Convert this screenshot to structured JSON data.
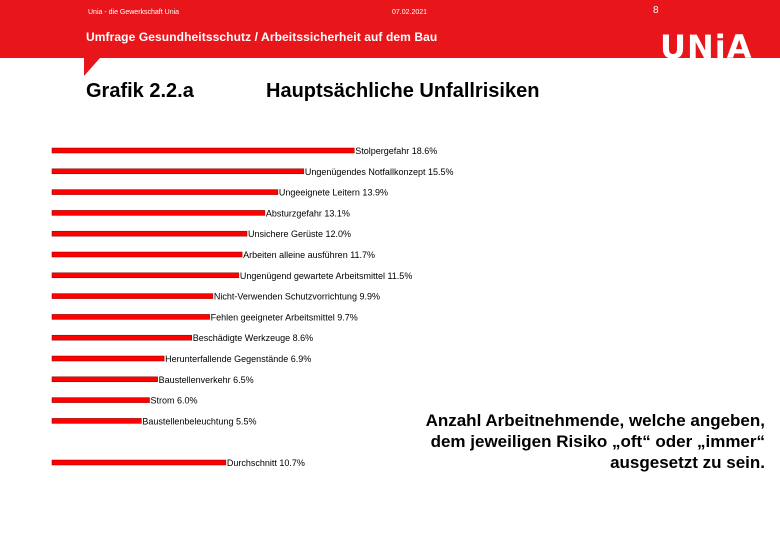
{
  "header": {
    "org": "Unia - die Gewerkschaft Unia",
    "date": "07.02.2021",
    "page": "8",
    "title": "Umfrage Gesundheitsschutz / Arbeitssicherheit auf dem Bau",
    "logo": "UNiA"
  },
  "figure_label": "Grafik 2.2.a",
  "note": "Anzahl Arbeitnehmende, welche angeben, dem jeweiligen Risiko „oft“ oder „immer“ ausgesetzt zu sein.",
  "colors": {
    "brand_red": "#e8161b",
    "bar": "#ff0000"
  },
  "chart_data": {
    "type": "bar",
    "orientation": "horizontal",
    "title": "Hauptsächliche Unfallrisiken",
    "xlabel": "",
    "ylabel": "",
    "grid": false,
    "unit": "%",
    "categories": [
      "Stolpergefahr",
      "Ungenügendes Notfallkonzept",
      "Ungeeignete Leitern",
      "Absturzgefahr",
      "Unsichere Gerüste",
      "Arbeiten alleine ausführen",
      "Ungenügend gewartete Arbeitsmittel",
      "Nicht-Verwenden Schutzvorrichtung",
      "Fehlen geeigneter Arbeitsmittel",
      "Beschädigte Werkzeuge",
      "Herunterfallende Gegenstände",
      "Baustellenverkehr",
      "Strom",
      "Baustellenbeleuchtung",
      "Durchschnitt"
    ],
    "values": [
      18.6,
      15.5,
      13.9,
      13.1,
      12.0,
      11.7,
      11.5,
      9.9,
      9.7,
      8.6,
      6.9,
      6.5,
      6.0,
      5.5,
      10.7
    ],
    "labels": [
      "Stolpergefahr 18.6%",
      "Ungenügendes Notfallkonzept 15.5%",
      "Ungeeignete Leitern 13.9%",
      "Absturzgefahr 13.1%",
      "Unsichere Gerüste 12.0%",
      "Arbeiten alleine ausführen 11.7%",
      "Ungenügend gewartete Arbeitsmittel 11.5%",
      "Nicht-Verwenden Schutzvorrichtung 9.9%",
      "Fehlen geeigneter Arbeitsmittel 9.7%",
      "Beschädigte Werkzeuge 8.6%",
      "Herunterfallende Gegenstände 6.9%",
      "Baustellenverkehr 6.5%",
      "Strom 6.0%",
      "Baustellenbeleuchtung 5.5%",
      "Durchschnitt 10.7%"
    ]
  }
}
